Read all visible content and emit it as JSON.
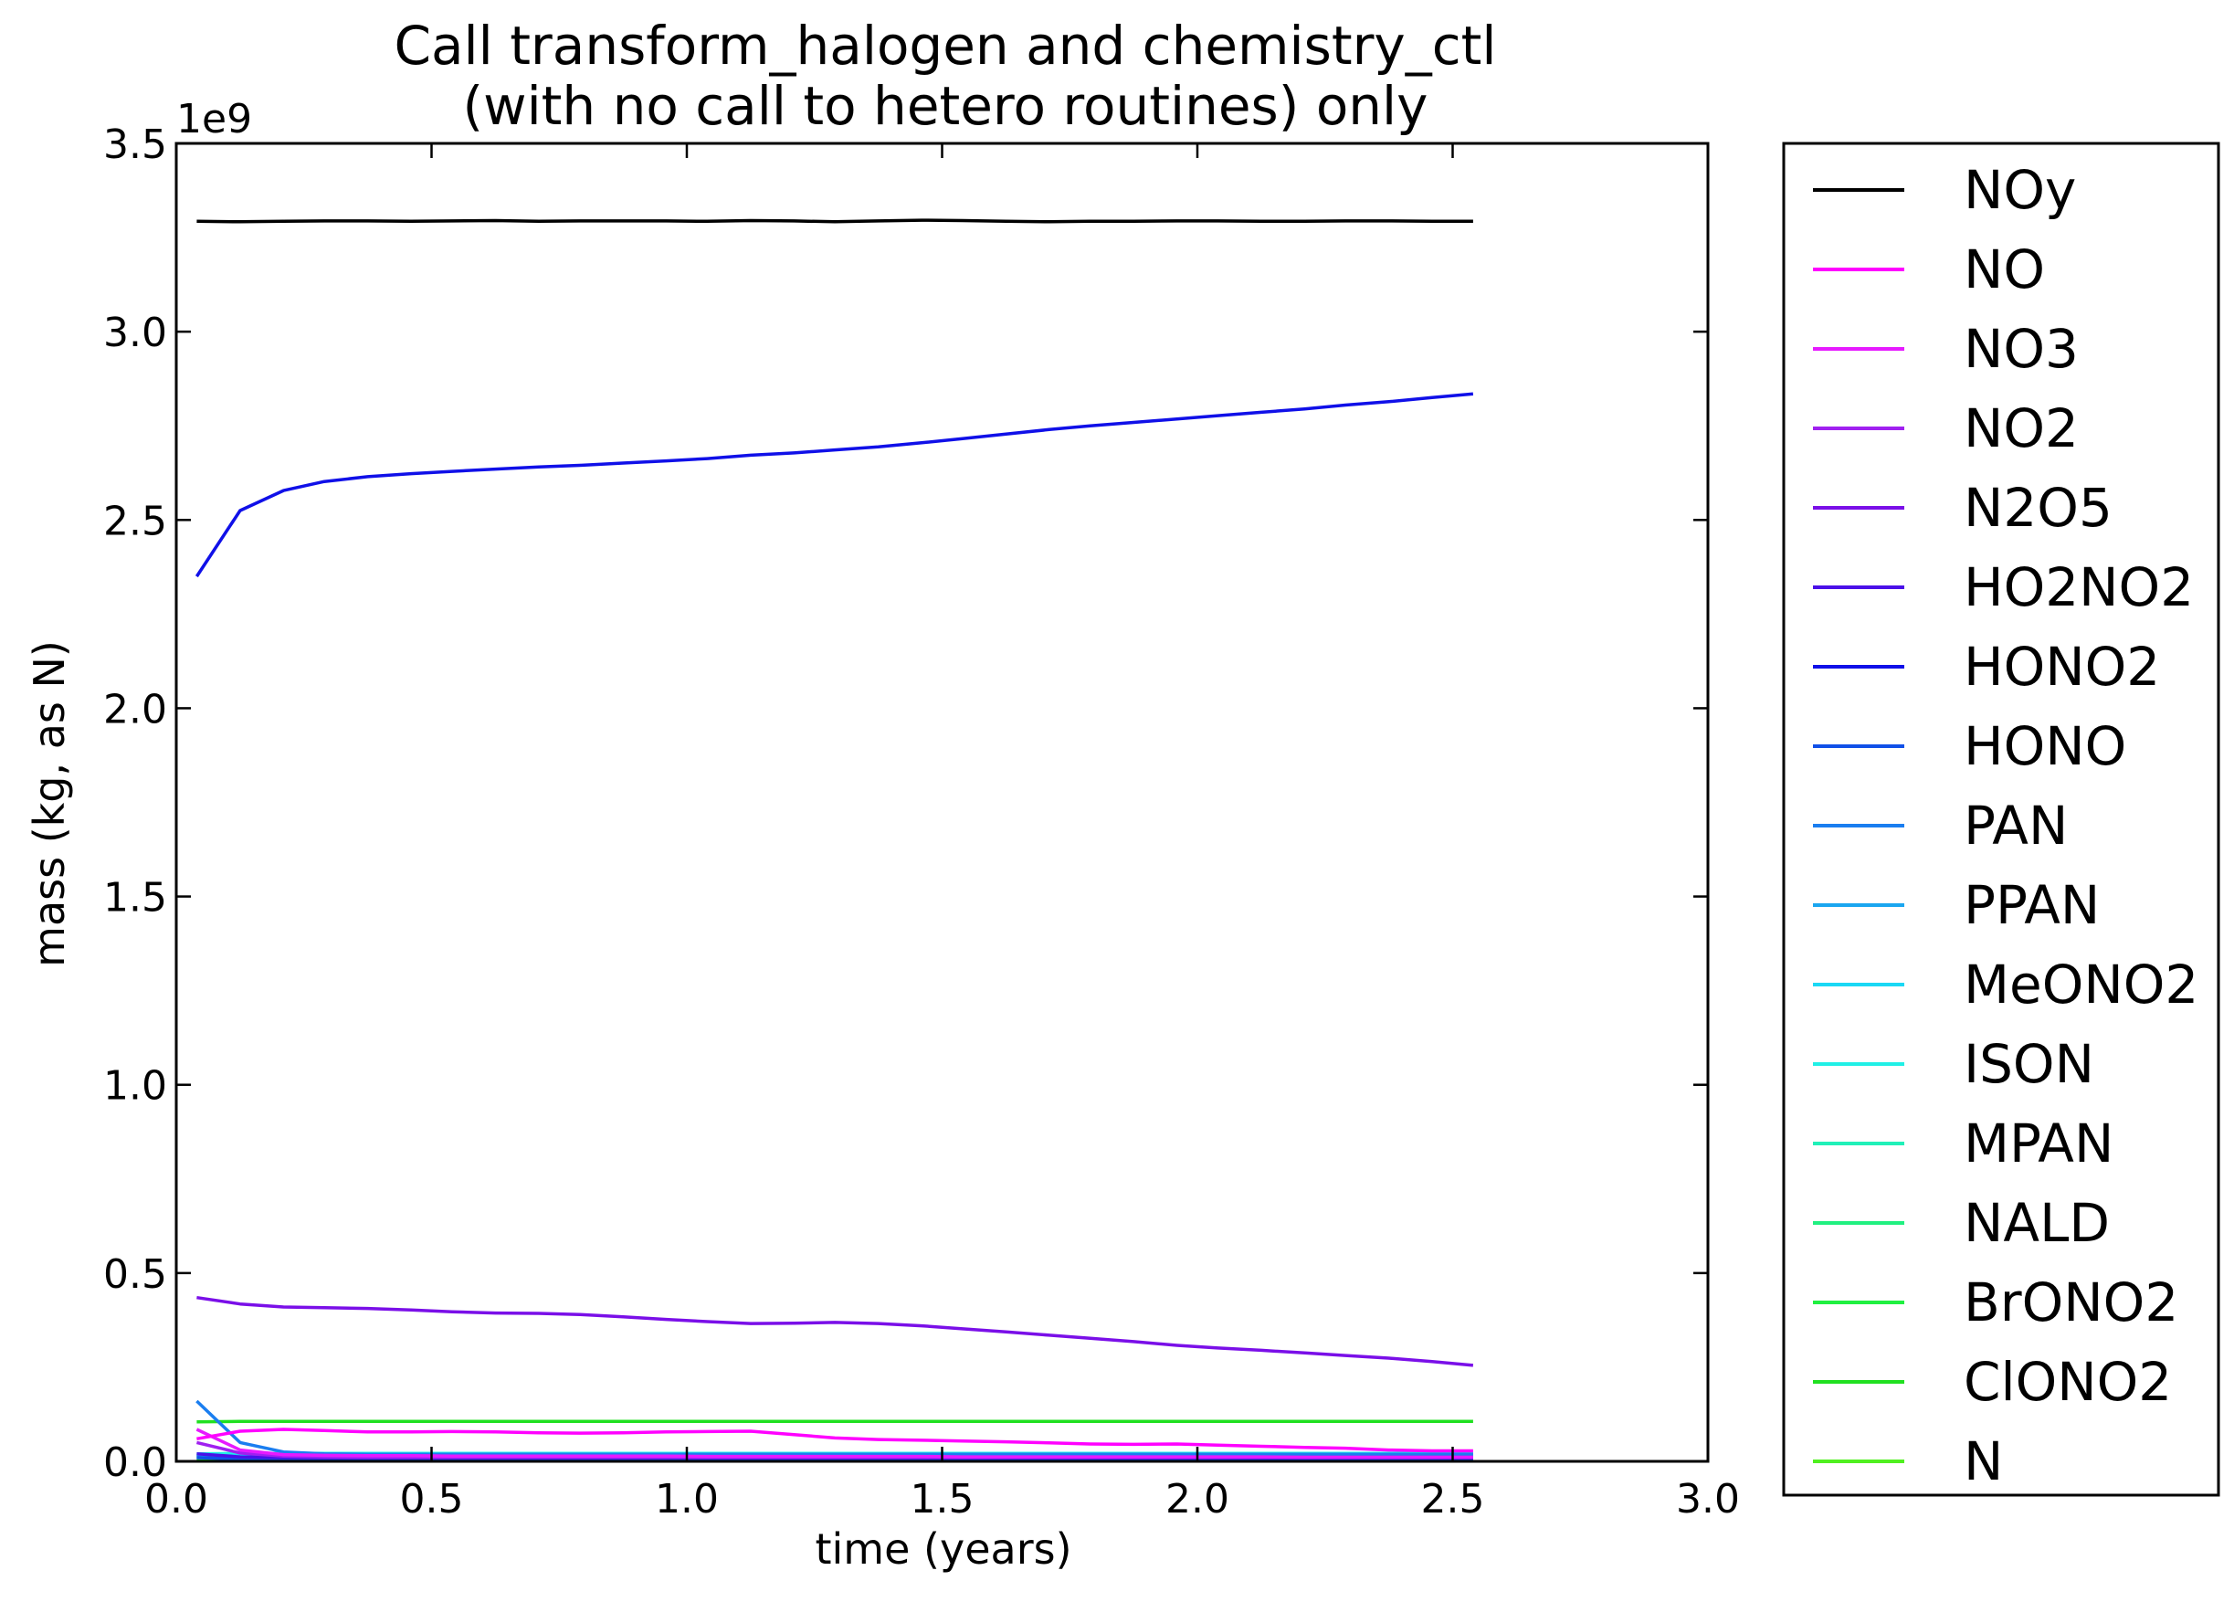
{
  "chart_data": {
    "type": "line",
    "title_lines": [
      "Call transform_halogen and chemistry_ctl",
      "(with no call to hetero routines) only"
    ],
    "xlabel": "time (years)",
    "ylabel": "mass (kg, as N)",
    "y_multiplier_label": "1e9",
    "xlim": [
      0.0,
      3.0
    ],
    "ylim": [
      0.0,
      3.5
    ],
    "xticks": [
      "0.0",
      "0.5",
      "1.0",
      "1.5",
      "2.0",
      "2.5",
      "3.0"
    ],
    "yticks": [
      "0.0",
      "0.5",
      "1.0",
      "1.5",
      "2.0",
      "2.5",
      "3.0",
      "3.5"
    ],
    "grid": false,
    "legend_position": "outside-right",
    "x": [
      0.04,
      0.125,
      0.21,
      0.29,
      0.375,
      0.46,
      0.54,
      0.625,
      0.71,
      0.79,
      0.875,
      0.96,
      1.04,
      1.125,
      1.21,
      1.29,
      1.375,
      1.46,
      1.54,
      1.625,
      1.71,
      1.79,
      1.875,
      1.96,
      2.04,
      2.125,
      2.21,
      2.29,
      2.375,
      2.46,
      2.54
    ],
    "series": [
      {
        "name": "NOy",
        "color": "#000000",
        "values": [
          3.293,
          3.292,
          3.293,
          3.294,
          3.294,
          3.293,
          3.294,
          3.295,
          3.293,
          3.294,
          3.294,
          3.294,
          3.293,
          3.295,
          3.294,
          3.292,
          3.294,
          3.296,
          3.295,
          3.293,
          3.292,
          3.293,
          3.293,
          3.294,
          3.294,
          3.293,
          3.293,
          3.294,
          3.294,
          3.293,
          3.293
        ]
      },
      {
        "name": "NO",
        "color": "#ff00ff",
        "values": [
          0.06,
          0.08,
          0.085,
          0.082,
          0.078,
          0.078,
          0.079,
          0.078,
          0.076,
          0.075,
          0.076,
          0.078,
          0.079,
          0.08,
          0.071,
          0.062,
          0.058,
          0.056,
          0.054,
          0.052,
          0.049,
          0.046,
          0.045,
          0.046,
          0.043,
          0.04,
          0.037,
          0.035,
          0.03,
          0.028,
          0.028
        ]
      },
      {
        "name": "NO3",
        "color": "#e61aff",
        "values": [
          0.085,
          0.03,
          0.018,
          0.016,
          0.015,
          0.015,
          0.014,
          0.014,
          0.014,
          0.014,
          0.014,
          0.014,
          0.013,
          0.013,
          0.013,
          0.013,
          0.013,
          0.013,
          0.012,
          0.012,
          0.012,
          0.012,
          0.012,
          0.012,
          0.012,
          0.012,
          0.011,
          0.011,
          0.011,
          0.011,
          0.011
        ]
      },
      {
        "name": "NO2",
        "color": "#a020f0",
        "values": [
          0.05,
          0.022,
          0.014,
          0.012,
          0.011,
          0.011,
          0.011,
          0.011,
          0.011,
          0.011,
          0.011,
          0.011,
          0.011,
          0.011,
          0.011,
          0.011,
          0.011,
          0.011,
          0.011,
          0.011,
          0.011,
          0.011,
          0.011,
          0.011,
          0.011,
          0.011,
          0.011,
          0.011,
          0.011,
          0.011,
          0.011
        ]
      },
      {
        "name": "N2O5",
        "color": "#7a0fe8",
        "values": [
          0.435,
          0.418,
          0.41,
          0.408,
          0.406,
          0.402,
          0.397,
          0.394,
          0.393,
          0.39,
          0.384,
          0.377,
          0.371,
          0.366,
          0.367,
          0.369,
          0.366,
          0.36,
          0.352,
          0.344,
          0.335,
          0.327,
          0.318,
          0.308,
          0.301,
          0.295,
          0.288,
          0.281,
          0.274,
          0.265,
          0.255
        ]
      },
      {
        "name": "HO2NO2",
        "color": "#4a10e8",
        "values": [
          0.02,
          0.012,
          0.01,
          0.009,
          0.009,
          0.009,
          0.009,
          0.009,
          0.009,
          0.009,
          0.009,
          0.009,
          0.009,
          0.009,
          0.009,
          0.009,
          0.009,
          0.009,
          0.009,
          0.009,
          0.009,
          0.009,
          0.009,
          0.009,
          0.009,
          0.009,
          0.009,
          0.009,
          0.009,
          0.009,
          0.009
        ]
      },
      {
        "name": "HONO2",
        "color": "#1010e8",
        "values": [
          2.35,
          2.525,
          2.578,
          2.602,
          2.615,
          2.623,
          2.629,
          2.635,
          2.641,
          2.645,
          2.651,
          2.657,
          2.663,
          2.672,
          2.678,
          2.686,
          2.694,
          2.705,
          2.716,
          2.728,
          2.74,
          2.75,
          2.759,
          2.768,
          2.777,
          2.786,
          2.795,
          2.805,
          2.814,
          2.825,
          2.835
        ]
      },
      {
        "name": "HONO",
        "color": "#1050e8",
        "values": [
          0.01,
          0.006,
          0.005,
          0.005,
          0.005,
          0.005,
          0.005,
          0.005,
          0.005,
          0.005,
          0.005,
          0.005,
          0.005,
          0.005,
          0.005,
          0.005,
          0.005,
          0.005,
          0.005,
          0.005,
          0.005,
          0.005,
          0.005,
          0.005,
          0.005,
          0.005,
          0.005,
          0.005,
          0.005,
          0.005,
          0.005
        ]
      },
      {
        "name": "PAN",
        "color": "#1a7ef0",
        "values": [
          0.16,
          0.05,
          0.025,
          0.02,
          0.019,
          0.019,
          0.019,
          0.019,
          0.019,
          0.019,
          0.019,
          0.019,
          0.019,
          0.019,
          0.019,
          0.019,
          0.019,
          0.019,
          0.019,
          0.019,
          0.019,
          0.019,
          0.019,
          0.019,
          0.019,
          0.019,
          0.019,
          0.019,
          0.019,
          0.019,
          0.019
        ]
      },
      {
        "name": "PPAN",
        "color": "#1aa6f0",
        "values": [
          0.012,
          0.008,
          0.007,
          0.007,
          0.007,
          0.007,
          0.007,
          0.007,
          0.007,
          0.007,
          0.007,
          0.007,
          0.007,
          0.007,
          0.007,
          0.007,
          0.007,
          0.007,
          0.007,
          0.007,
          0.007,
          0.007,
          0.007,
          0.007,
          0.007,
          0.007,
          0.007,
          0.007,
          0.007,
          0.007,
          0.007
        ]
      },
      {
        "name": "MeONO2",
        "color": "#1ad8f5",
        "values": [
          0.015,
          0.015,
          0.015,
          0.015,
          0.015,
          0.015,
          0.015,
          0.015,
          0.015,
          0.015,
          0.015,
          0.015,
          0.015,
          0.015,
          0.015,
          0.015,
          0.015,
          0.015,
          0.015,
          0.015,
          0.015,
          0.015,
          0.015,
          0.015,
          0.015,
          0.015,
          0.015,
          0.015,
          0.015,
          0.015,
          0.015
        ]
      },
      {
        "name": "ISON",
        "color": "#20f0e6",
        "values": [
          0.02,
          0.021,
          0.021,
          0.021,
          0.021,
          0.021,
          0.021,
          0.021,
          0.021,
          0.021,
          0.021,
          0.021,
          0.021,
          0.021,
          0.021,
          0.021,
          0.021,
          0.021,
          0.021,
          0.021,
          0.021,
          0.021,
          0.021,
          0.021,
          0.021,
          0.021,
          0.021,
          0.021,
          0.021,
          0.021,
          0.021
        ]
      },
      {
        "name": "MPAN",
        "color": "#20f0b8",
        "values": [
          0.017,
          0.017,
          0.017,
          0.017,
          0.017,
          0.017,
          0.017,
          0.017,
          0.017,
          0.017,
          0.017,
          0.017,
          0.017,
          0.017,
          0.017,
          0.017,
          0.017,
          0.017,
          0.017,
          0.017,
          0.017,
          0.017,
          0.017,
          0.017,
          0.017,
          0.017,
          0.017,
          0.017,
          0.017,
          0.017,
          0.017
        ]
      },
      {
        "name": "NALD",
        "color": "#20f080",
        "values": [
          0.012,
          0.012,
          0.012,
          0.012,
          0.012,
          0.012,
          0.012,
          0.012,
          0.012,
          0.012,
          0.012,
          0.012,
          0.012,
          0.012,
          0.012,
          0.012,
          0.012,
          0.012,
          0.012,
          0.012,
          0.012,
          0.012,
          0.012,
          0.012,
          0.012,
          0.012,
          0.012,
          0.012,
          0.012,
          0.012,
          0.012
        ]
      },
      {
        "name": "BrONO2",
        "color": "#20f040",
        "values": [
          0.004,
          0.004,
          0.004,
          0.004,
          0.004,
          0.004,
          0.004,
          0.004,
          0.004,
          0.004,
          0.004,
          0.004,
          0.004,
          0.004,
          0.004,
          0.004,
          0.004,
          0.004,
          0.004,
          0.004,
          0.004,
          0.004,
          0.004,
          0.004,
          0.004,
          0.004,
          0.004,
          0.004,
          0.004,
          0.004,
          0.004
        ]
      },
      {
        "name": "ClONO2",
        "color": "#20e020",
        "values": [
          0.105,
          0.106,
          0.106,
          0.106,
          0.106,
          0.106,
          0.106,
          0.106,
          0.106,
          0.106,
          0.106,
          0.106,
          0.106,
          0.106,
          0.106,
          0.106,
          0.106,
          0.106,
          0.106,
          0.106,
          0.106,
          0.106,
          0.106,
          0.106,
          0.106,
          0.106,
          0.106,
          0.106,
          0.106,
          0.106,
          0.106
        ]
      },
      {
        "name": "N",
        "color": "#50f020",
        "values": [
          0.001,
          0.001,
          0.001,
          0.001,
          0.001,
          0.001,
          0.001,
          0.001,
          0.001,
          0.001,
          0.001,
          0.001,
          0.001,
          0.001,
          0.001,
          0.001,
          0.001,
          0.001,
          0.001,
          0.001,
          0.001,
          0.001,
          0.001,
          0.001,
          0.001,
          0.001,
          0.001,
          0.001,
          0.001,
          0.001,
          0.001
        ]
      }
    ]
  }
}
